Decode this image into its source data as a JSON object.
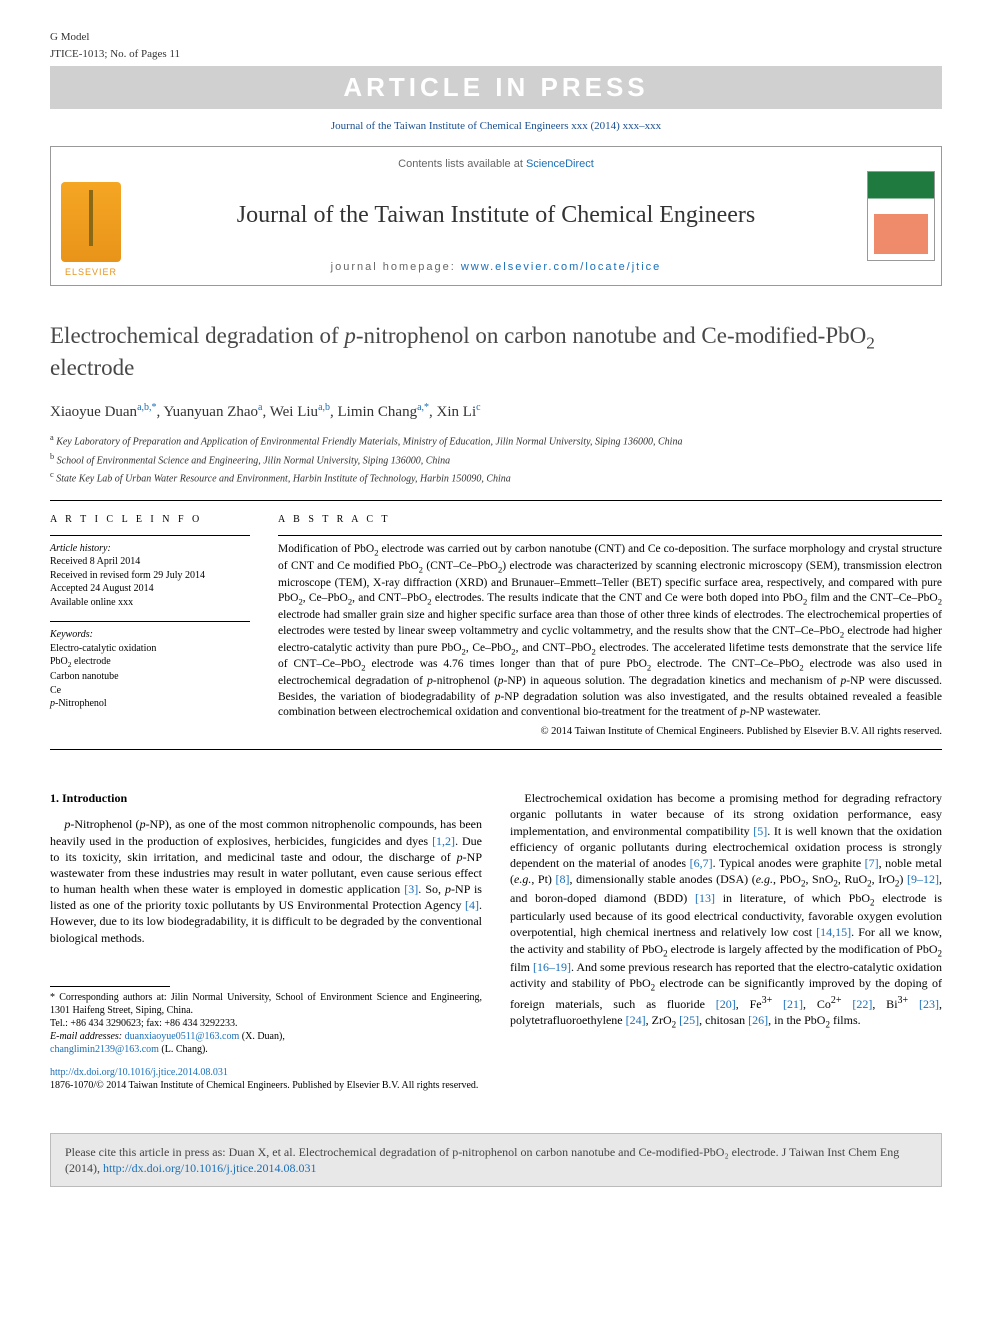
{
  "gmodel": "G Model",
  "gmodel_sub": "JTICE-1013; No. of Pages 11",
  "press_banner": "ARTICLE IN PRESS",
  "journal_ref": "Journal of the Taiwan Institute of Chemical Engineers xxx (2014) xxx–xxx",
  "contents_prefix": "Contents lists available at ",
  "contents_link": "ScienceDirect",
  "journal_name": "Journal of the Taiwan Institute of Chemical Engineers",
  "homepage_prefix": "journal homepage: ",
  "homepage_link": "www.elsevier.com/locate/jtice",
  "elsevier": "ELSEVIER",
  "title": "Electrochemical degradation of p-nitrophenol on carbon nanotube and Ce-modified-PbO₂ electrode",
  "authors_html": "Xiaoyue Duan|a,b,*|, Yuanyuan Zhao|a|, Wei Liu|a,b|, Limin Chang|a,*|, Xin Li|c|",
  "authors": [
    {
      "name": "Xiaoyue Duan",
      "sup": "a,b,*"
    },
    {
      "name": "Yuanyuan Zhao",
      "sup": "a"
    },
    {
      "name": "Wei Liu",
      "sup": "a,b"
    },
    {
      "name": "Limin Chang",
      "sup": "a,*"
    },
    {
      "name": "Xin Li",
      "sup": "c"
    }
  ],
  "affiliations": [
    {
      "sup": "a",
      "text": "Key Laboratory of Preparation and Application of Environmental Friendly Materials, Ministry of Education, Jilin Normal University, Siping 136000, China"
    },
    {
      "sup": "b",
      "text": "School of Environmental Science and Engineering, Jilin Normal University, Siping 136000, China"
    },
    {
      "sup": "c",
      "text": "State Key Lab of Urban Water Resource and Environment, Harbin Institute of Technology, Harbin 150090, China"
    }
  ],
  "article_info_head": "A R T I C L E   I N F O",
  "history_label": "Article history:",
  "history": [
    "Received 8 April 2014",
    "Received in revised form 29 July 2014",
    "Accepted 24 August 2014",
    "Available online xxx"
  ],
  "keywords_label": "Keywords:",
  "keywords": [
    "Electro-catalytic oxidation",
    "PbO₂ electrode",
    "Carbon nanotube",
    "Ce",
    "p-Nitrophenol"
  ],
  "abstract_head": "A B S T R A C T",
  "abstract": "Modification of PbO₂ electrode was carried out by carbon nanotube (CNT) and Ce co-deposition. The surface morphology and crystal structure of CNT and Ce modified PbO₂ (CNT–Ce–PbO₂) electrode was characterized by scanning electronic microscopy (SEM), transmission electron microscope (TEM), X-ray diffraction (XRD) and Brunauer–Emmett–Teller (BET) specific surface area, respectively, and compared with pure PbO₂, Ce–PbO₂, and CNT–PbO₂ electrodes. The results indicate that the CNT and Ce were both doped into PbO₂ film and the CNT–Ce–PbO₂ electrode had smaller grain size and higher specific surface area than those of other three kinds of electrodes. The electrochemical properties of electrodes were tested by linear sweep voltammetry and cyclic voltammetry, and the results show that the CNT–Ce–PbO₂ electrode had higher electro-catalytic activity than pure PbO₂, Ce–PbO₂, and CNT–PbO₂ electrodes. The accelerated lifetime tests demonstrate that the service life of CNT–Ce–PbO₂ electrode was 4.76 times longer than that of pure PbO₂ electrode. The CNT–Ce–PbO₂ electrode was also used in electrochemical degradation of p-nitrophenol (p-NP) in aqueous solution. The degradation kinetics and mechanism of p-NP were discussed. Besides, the variation of biodegradability of p-NP degradation solution was also investigated, and the results obtained revealed a feasible combination between electrochemical oxidation and conventional bio-treatment for the treatment of p-NP wastewater.",
  "abs_copyright": "© 2014 Taiwan Institute of Chemical Engineers. Published by Elsevier B.V. All rights reserved.",
  "section1_head": "1. Introduction",
  "col1_p1": "p-Nitrophenol (p-NP), as one of the most common nitrophenolic compounds, has been heavily used in the production of explosives, herbicides, fungicides and dyes [1,2]. Due to its toxicity, skin irritation, and medicinal taste and odour, the discharge of p-NP wastewater from these industries may result in water pollutant, even cause serious effect to human health when these water is employed in domestic application [3]. So, p-NP is listed as one of the priority toxic pollutants by US Environmental Protection Agency [4]. However, due to its low biodegradability, it is difficult to be degraded by the conventional biological methods.",
  "col2_p1": "Electrochemical oxidation has become a promising method for degrading refractory organic pollutants in water because of its strong oxidation performance, easy implementation, and environmental compatibility [5]. It is well known that the oxidation efficiency of organic pollutants during electrochemical oxidation process is strongly dependent on the material of anodes [6,7]. Typical anodes were graphite [7], noble metal (e.g., Pt) [8], dimensionally stable anodes (DSA) (e.g., PbO₂, SnO₂, RuO₂, IrO₂) [9–12], and boron-doped diamond (BDD) [13] in literature, of which PbO₂ electrode is particularly used because of its good electrical conductivity, favorable oxygen evolution overpotential, high chemical inertness and relatively low cost [14,15]. For all we know, the activity and stability of PbO₂ electrode is largely affected by the modification of PbO₂ film [16–19]. And some previous research has reported that the electro-catalytic oxidation activity and stability of PbO₂ electrode can be significantly improved by the doping of foreign materials, such as fluoride [20], Fe³⁺ [21], Co²⁺ [22], Bi³⁺ [23], polytetrafluoroethylene [24], ZrO₂ [25], chitosan [26], in the PbO₂ films.",
  "corr": "* Corresponding authors at: Jilin Normal University, School of Environment Science and Engineering, 1301 Haifeng Street, Siping, China.",
  "tel": "Tel.: +86 434 3290623; fax: +86 434 3292233.",
  "email_label": "E-mail addresses:",
  "email1": "duanxiaoyue0511@163.com",
  "email1_who": " (X. Duan),",
  "email2": "changlimin2139@163.com",
  "email2_who": " (L. Chang).",
  "doi": "http://dx.doi.org/10.1016/j.jtice.2014.08.031",
  "bottom_copy": "1876-1070/© 2014 Taiwan Institute of Chemical Engineers. Published by Elsevier B.V. All rights reserved.",
  "cite_text": "Please cite this article in press as: Duan X, et al. Electrochemical degradation of p-nitrophenol on carbon nanotube and Ce-modified-PbO₂ electrode. J Taiwan Inst Chem Eng (2014), ",
  "cite_doi": "http://dx.doi.org/10.1016/j.jtice.2014.08.031",
  "colors": {
    "link": "#1a6fb8",
    "banner_bg": "#d0d0d0",
    "banner_fg": "#ffffff",
    "elsevier": "#e8941a",
    "citebox_bg": "#e8e8e8"
  }
}
